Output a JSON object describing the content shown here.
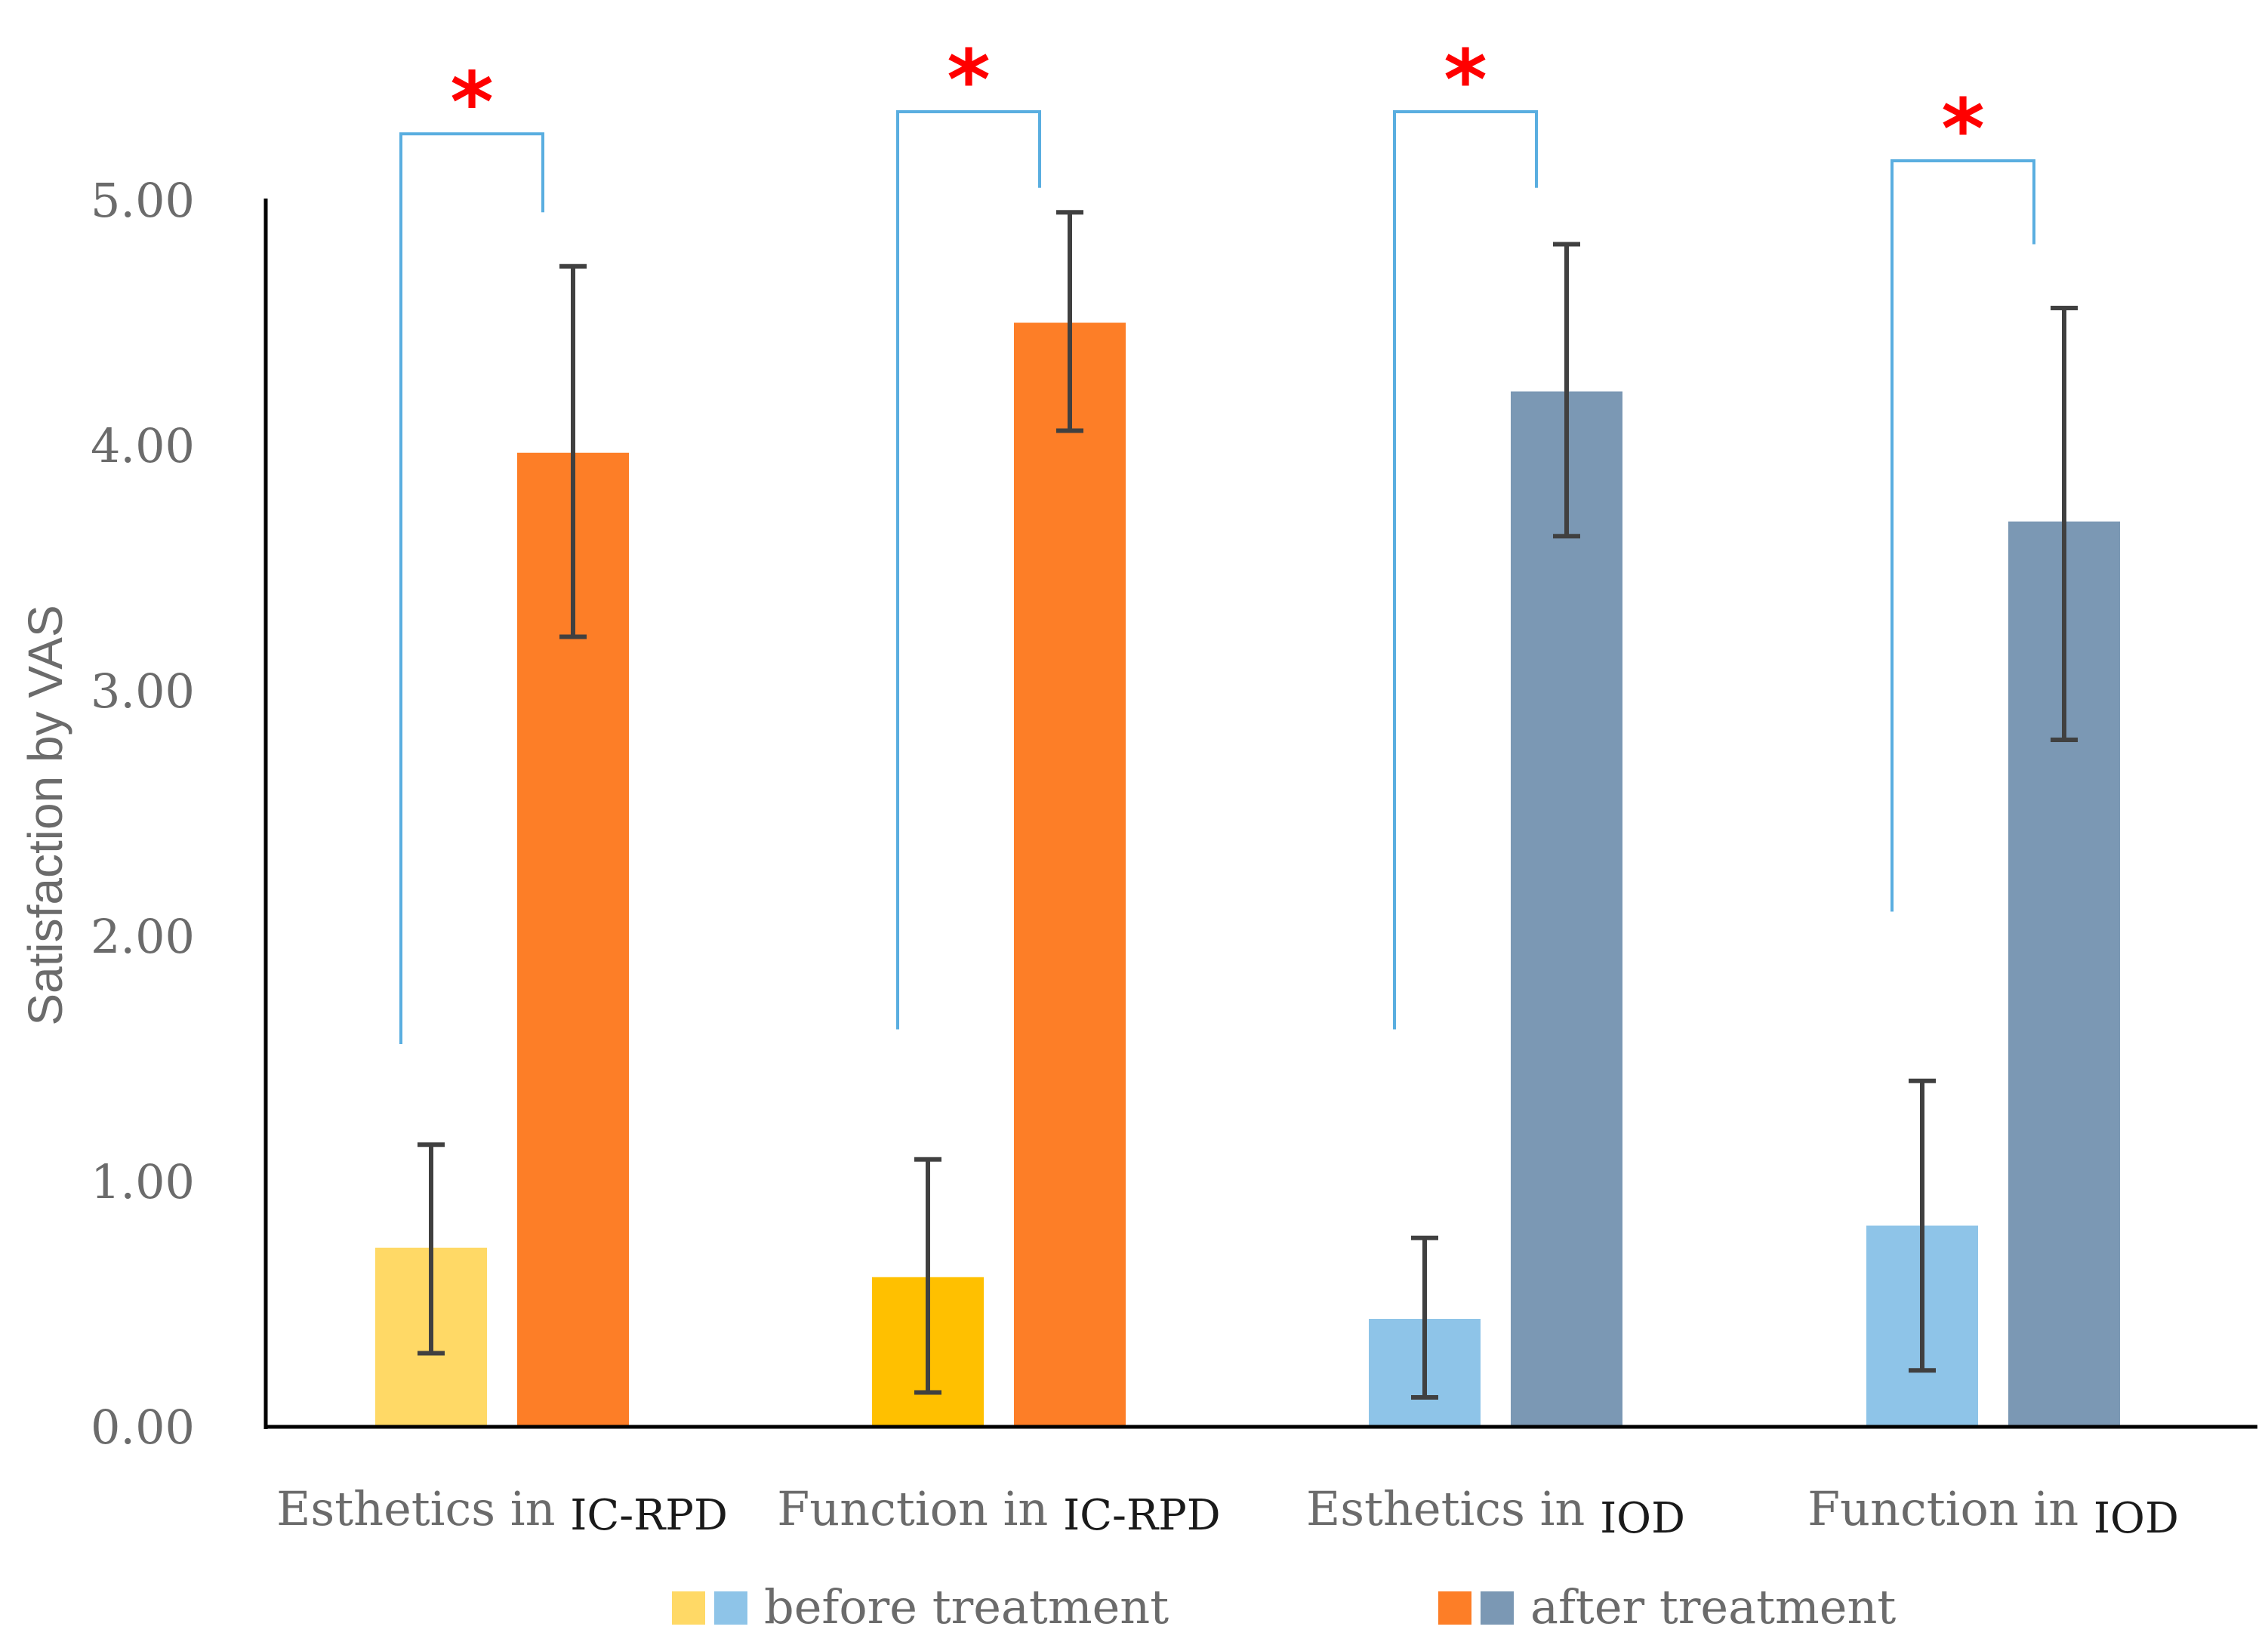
{
  "chart_data": {
    "type": "bar",
    "title": "",
    "xlabel": "",
    "ylabel": "Satisfaction by VAS",
    "ylim": [
      0,
      5
    ],
    "yticks": [
      "0.00",
      "1.00",
      "2.00",
      "3.00",
      "4.00",
      "5.00"
    ],
    "categories": [
      {
        "main": "Esthetics in",
        "suffix": "IC-RPD"
      },
      {
        "main": "Function in",
        "suffix": "IC-RPD"
      },
      {
        "main": "Esthetics in",
        "suffix": "IOD"
      },
      {
        "main": "Function in",
        "suffix": "IOD"
      }
    ],
    "series": [
      {
        "name": "before treatment",
        "values": [
          0.73,
          0.61,
          0.44,
          0.82
        ],
        "error_high": [
          1.15,
          1.09,
          0.77,
          1.41
        ],
        "error_low": [
          0.3,
          0.14,
          0.12,
          0.23
        ],
        "colors": [
          "#ffd966",
          "#ffc000",
          "#8ec4e8",
          "#8ec4e8"
        ]
      },
      {
        "name": "after treatment",
        "values": [
          3.97,
          4.5,
          4.22,
          3.69
        ],
        "error_high": [
          4.73,
          4.95,
          4.82,
          4.56
        ],
        "error_low": [
          3.22,
          4.06,
          3.63,
          2.8
        ],
        "colors": [
          "#fd7e27",
          "#fd7e27",
          "#7b98b4",
          "#7b98b4"
        ]
      }
    ],
    "significance": [
      {
        "marker": "*",
        "top": 5.27,
        "left_end": 1.56,
        "right_end": 4.95
      },
      {
        "marker": "*",
        "top": 5.36,
        "left_end": 1.62,
        "right_end": 5.05
      },
      {
        "marker": "*",
        "top": 5.36,
        "left_end": 1.62,
        "right_end": 5.05
      },
      {
        "marker": "*",
        "top": 5.16,
        "left_end": 2.1,
        "right_end": 4.82
      }
    ],
    "legend": {
      "position": "bottom",
      "items": [
        {
          "label": "before treatment",
          "swatches": [
            "#ffd966",
            "#8ec4e8"
          ]
        },
        {
          "label": "after treatment",
          "swatches": [
            "#fd7e27",
            "#7b98b4"
          ]
        }
      ]
    },
    "colors": {
      "axis": "#000000",
      "bracket": "#5aaee0",
      "error_bar": "#404040",
      "star": "#ff0000",
      "text": "#6b6b6b"
    }
  }
}
